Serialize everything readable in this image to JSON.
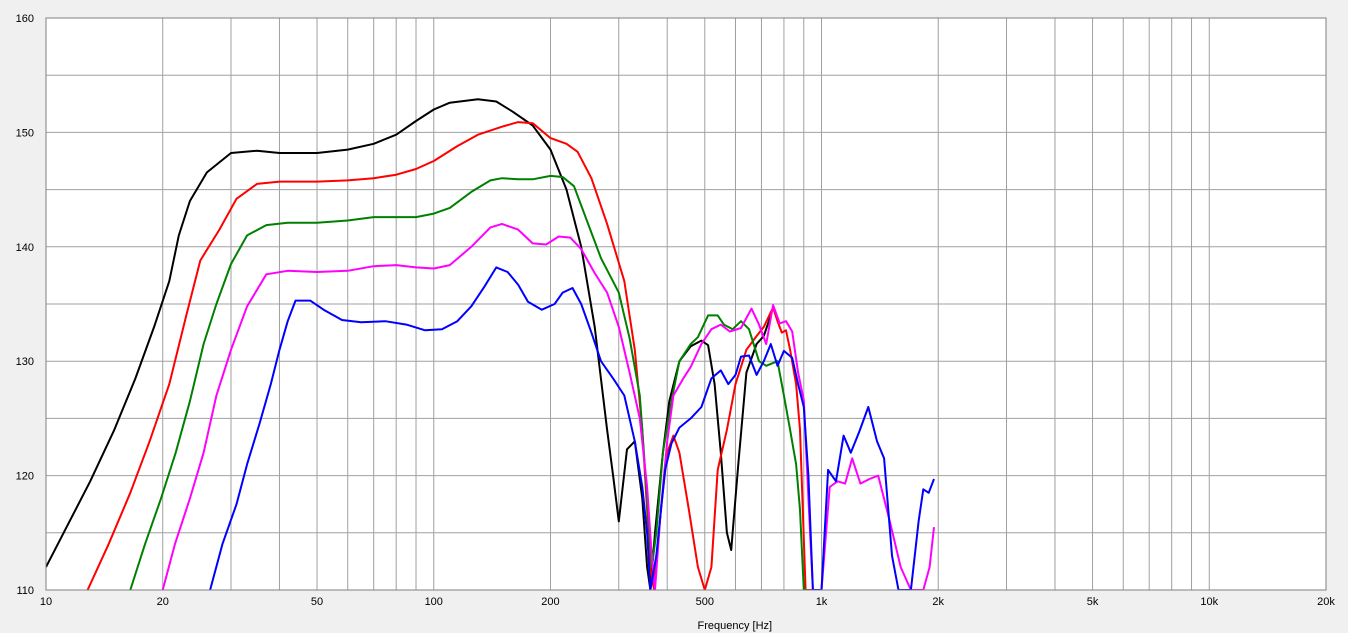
{
  "chart_data": {
    "type": "line",
    "title": "",
    "xlabel": "Frequency [Hz]",
    "ylabel": "",
    "xscale": "log",
    "xlim": [
      10,
      20000
    ],
    "ylim": [
      110,
      160
    ],
    "grid": true,
    "legend": "none",
    "x_tick_labels": [
      {
        "value": 10,
        "label": "10"
      },
      {
        "value": 20,
        "label": "20"
      },
      {
        "value": 50,
        "label": "50"
      },
      {
        "value": 100,
        "label": "100"
      },
      {
        "value": 200,
        "label": "200"
      },
      {
        "value": 500,
        "label": "500"
      },
      {
        "value": 1000,
        "label": "1k"
      },
      {
        "value": 2000,
        "label": "2k"
      },
      {
        "value": 5000,
        "label": "5k"
      },
      {
        "value": 10000,
        "label": "10k"
      },
      {
        "value": 20000,
        "label": "20k"
      }
    ],
    "y_tick_labels": [
      {
        "value": 110,
        "label": "110"
      },
      {
        "value": 120,
        "label": "120"
      },
      {
        "value": 130,
        "label": "130"
      },
      {
        "value": 140,
        "label": "140"
      },
      {
        "value": 150,
        "label": "150"
      },
      {
        "value": 160,
        "label": "160"
      }
    ],
    "series": [
      {
        "color": "#000000",
        "points": [
          [
            10,
            112
          ],
          [
            11.3,
            115.5
          ],
          [
            13,
            119.5
          ],
          [
            15,
            124
          ],
          [
            17,
            128.5
          ],
          [
            19,
            133
          ],
          [
            20.8,
            137
          ],
          [
            22,
            141
          ],
          [
            23.5,
            144
          ],
          [
            26,
            146.5
          ],
          [
            30,
            148.2
          ],
          [
            35,
            148.4
          ],
          [
            40,
            148.2
          ],
          [
            50,
            148.2
          ],
          [
            60,
            148.5
          ],
          [
            70,
            149
          ],
          [
            80,
            149.8
          ],
          [
            90,
            151
          ],
          [
            100,
            152
          ],
          [
            110,
            152.6
          ],
          [
            130,
            152.9
          ],
          [
            145,
            152.7
          ],
          [
            160,
            151.8
          ],
          [
            180,
            150.6
          ],
          [
            200,
            148.5
          ],
          [
            220,
            145
          ],
          [
            240,
            140
          ],
          [
            260,
            133
          ],
          [
            280,
            124
          ],
          [
            290,
            120
          ],
          [
            300,
            116
          ],
          [
            315,
            122.3
          ],
          [
            330,
            123
          ],
          [
            345,
            118
          ],
          [
            355,
            112
          ],
          [
            362,
            110
          ],
          [
            372,
            115
          ],
          [
            390,
            122
          ],
          [
            405,
            126.5
          ],
          [
            430,
            130
          ],
          [
            460,
            131.3
          ],
          [
            490,
            131.8
          ],
          [
            510,
            131.4
          ],
          [
            530,
            128
          ],
          [
            550,
            122
          ],
          [
            570,
            115
          ],
          [
            585,
            113.5
          ],
          [
            610,
            121
          ],
          [
            640,
            129
          ],
          [
            680,
            131.5
          ],
          [
            710,
            132.2
          ],
          [
            740,
            134
          ]
        ]
      },
      {
        "color": "#ff0000",
        "points": [
          [
            12.8,
            110
          ],
          [
            14.5,
            114
          ],
          [
            16.5,
            118.5
          ],
          [
            18.5,
            123
          ],
          [
            20.8,
            128
          ],
          [
            23,
            134
          ],
          [
            25,
            138.8
          ],
          [
            28,
            141.5
          ],
          [
            31,
            144.2
          ],
          [
            35,
            145.5
          ],
          [
            40,
            145.7
          ],
          [
            50,
            145.7
          ],
          [
            60,
            145.8
          ],
          [
            70,
            146
          ],
          [
            80,
            146.3
          ],
          [
            90,
            146.8
          ],
          [
            100,
            147.5
          ],
          [
            115,
            148.8
          ],
          [
            130,
            149.8
          ],
          [
            150,
            150.5
          ],
          [
            165,
            150.9
          ],
          [
            180,
            150.8
          ],
          [
            200,
            149.5
          ],
          [
            220,
            149
          ],
          [
            235,
            148.3
          ],
          [
            255,
            146
          ],
          [
            280,
            142
          ],
          [
            310,
            137
          ],
          [
            330,
            131
          ],
          [
            345,
            124
          ],
          [
            355,
            117
          ],
          [
            362,
            112
          ],
          [
            370,
            110
          ],
          [
            385,
            117
          ],
          [
            400,
            122
          ],
          [
            415,
            123.5
          ],
          [
            430,
            122
          ],
          [
            455,
            117
          ],
          [
            480,
            112
          ],
          [
            500,
            110
          ],
          [
            520,
            112
          ],
          [
            540,
            120.5
          ],
          [
            570,
            124
          ],
          [
            600,
            128
          ],
          [
            640,
            131
          ],
          [
            680,
            132.2
          ],
          [
            710,
            133
          ],
          [
            750,
            134.7
          ],
          [
            770,
            133.5
          ],
          [
            790,
            132.5
          ],
          [
            810,
            132.7
          ],
          [
            830,
            131
          ],
          [
            860,
            128
          ],
          [
            880,
            124
          ],
          [
            910,
            110
          ],
          [
            960,
            110
          ]
        ]
      },
      {
        "color": "#008000",
        "points": [
          [
            16.5,
            110
          ],
          [
            18,
            114
          ],
          [
            19.8,
            118
          ],
          [
            21.6,
            122
          ],
          [
            23.5,
            126.5
          ],
          [
            25.5,
            131.5
          ],
          [
            27.5,
            135
          ],
          [
            30,
            138.5
          ],
          [
            33,
            141
          ],
          [
            37,
            141.9
          ],
          [
            42,
            142.1
          ],
          [
            50,
            142.1
          ],
          [
            60,
            142.3
          ],
          [
            70,
            142.6
          ],
          [
            80,
            142.6
          ],
          [
            90,
            142.6
          ],
          [
            100,
            142.9
          ],
          [
            110,
            143.4
          ],
          [
            125,
            144.8
          ],
          [
            140,
            145.8
          ],
          [
            150,
            146
          ],
          [
            165,
            145.9
          ],
          [
            180,
            145.9
          ],
          [
            200,
            146.2
          ],
          [
            215,
            146.1
          ],
          [
            230,
            145.3
          ],
          [
            250,
            142
          ],
          [
            270,
            139
          ],
          [
            300,
            136
          ],
          [
            320,
            132
          ],
          [
            340,
            127
          ],
          [
            350,
            121
          ],
          [
            358,
            116
          ],
          [
            365,
            112
          ],
          [
            375,
            115
          ],
          [
            390,
            122
          ],
          [
            410,
            126.5
          ],
          [
            430,
            130
          ],
          [
            460,
            131.5
          ],
          [
            480,
            132.1
          ],
          [
            510,
            134
          ],
          [
            540,
            134
          ],
          [
            560,
            133.2
          ],
          [
            590,
            132.8
          ],
          [
            620,
            133.5
          ],
          [
            650,
            132.8
          ],
          [
            690,
            130
          ],
          [
            720,
            129.6
          ],
          [
            770,
            130
          ],
          [
            800,
            127
          ],
          [
            830,
            124
          ],
          [
            860,
            121
          ],
          [
            880,
            117
          ],
          [
            900,
            110
          ],
          [
            920,
            110
          ]
        ]
      },
      {
        "color": "#ff00ff",
        "points": [
          [
            20,
            110
          ],
          [
            21.5,
            114
          ],
          [
            23.5,
            118
          ],
          [
            25.5,
            122
          ],
          [
            27.5,
            127
          ],
          [
            30,
            131
          ],
          [
            33,
            134.8
          ],
          [
            37,
            137.6
          ],
          [
            42,
            137.9
          ],
          [
            50,
            137.8
          ],
          [
            60,
            137.9
          ],
          [
            70,
            138.3
          ],
          [
            80,
            138.4
          ],
          [
            90,
            138.2
          ],
          [
            100,
            138.1
          ],
          [
            110,
            138.4
          ],
          [
            125,
            140
          ],
          [
            140,
            141.7
          ],
          [
            150,
            142
          ],
          [
            165,
            141.5
          ],
          [
            180,
            140.3
          ],
          [
            195,
            140.2
          ],
          [
            210,
            140.9
          ],
          [
            225,
            140.8
          ],
          [
            240,
            139.8
          ],
          [
            260,
            137.7
          ],
          [
            280,
            136
          ],
          [
            300,
            133
          ],
          [
            320,
            129
          ],
          [
            340,
            125
          ],
          [
            355,
            119
          ],
          [
            365,
            113
          ],
          [
            372,
            110
          ],
          [
            385,
            117
          ],
          [
            400,
            123
          ],
          [
            415,
            127
          ],
          [
            440,
            128.5
          ],
          [
            460,
            129.5
          ],
          [
            490,
            131.5
          ],
          [
            520,
            132.8
          ],
          [
            550,
            133.2
          ],
          [
            580,
            132.6
          ],
          [
            620,
            132.9
          ],
          [
            660,
            134.6
          ],
          [
            690,
            133.2
          ],
          [
            720,
            131.5
          ],
          [
            750,
            134.9
          ],
          [
            780,
            133.3
          ],
          [
            810,
            133.5
          ],
          [
            840,
            132.6
          ],
          [
            870,
            129
          ],
          [
            900,
            126.6
          ],
          [
            925,
            118
          ],
          [
            950,
            110
          ],
          [
            1000,
            110
          ],
          [
            1050,
            119
          ],
          [
            1100,
            119.5
          ],
          [
            1150,
            119.3
          ],
          [
            1200,
            121.5
          ],
          [
            1260,
            119.3
          ],
          [
            1330,
            119.7
          ],
          [
            1400,
            120
          ],
          [
            1500,
            116
          ],
          [
            1600,
            112
          ],
          [
            1700,
            110
          ],
          [
            1830,
            110
          ],
          [
            1900,
            112
          ],
          [
            1950,
            115.5
          ]
        ]
      },
      {
        "color": "#0000ff",
        "points": [
          [
            26.5,
            110
          ],
          [
            28.5,
            114
          ],
          [
            31,
            117.5
          ],
          [
            33,
            121
          ],
          [
            35.5,
            124.5
          ],
          [
            38,
            128
          ],
          [
            40,
            131
          ],
          [
            42,
            133.5
          ],
          [
            44,
            135.3
          ],
          [
            48,
            135.3
          ],
          [
            52,
            134.5
          ],
          [
            58,
            133.6
          ],
          [
            65,
            133.4
          ],
          [
            75,
            133.5
          ],
          [
            85,
            133.2
          ],
          [
            95,
            132.7
          ],
          [
            105,
            132.8
          ],
          [
            115,
            133.5
          ],
          [
            125,
            134.8
          ],
          [
            135,
            136.5
          ],
          [
            145,
            138.2
          ],
          [
            155,
            137.8
          ],
          [
            165,
            136.7
          ],
          [
            175,
            135.2
          ],
          [
            190,
            134.5
          ],
          [
            205,
            135
          ],
          [
            215,
            136
          ],
          [
            228,
            136.4
          ],
          [
            240,
            135
          ],
          [
            255,
            132.5
          ],
          [
            270,
            130
          ],
          [
            290,
            128.5
          ],
          [
            310,
            127
          ],
          [
            330,
            123
          ],
          [
            345,
            119
          ],
          [
            355,
            115
          ],
          [
            362,
            110
          ],
          [
            375,
            113
          ],
          [
            395,
            120.5
          ],
          [
            410,
            122.8
          ],
          [
            430,
            124.2
          ],
          [
            460,
            125
          ],
          [
            490,
            126
          ],
          [
            520,
            128.5
          ],
          [
            550,
            129.2
          ],
          [
            575,
            128
          ],
          [
            600,
            128.8
          ],
          [
            620,
            130.4
          ],
          [
            650,
            130.5
          ],
          [
            680,
            128.8
          ],
          [
            710,
            130
          ],
          [
            740,
            131.5
          ],
          [
            770,
            129.6
          ],
          [
            800,
            130.9
          ],
          [
            840,
            130.3
          ],
          [
            870,
            128
          ],
          [
            900,
            126
          ],
          [
            925,
            120
          ],
          [
            950,
            110
          ],
          [
            1000,
            110
          ],
          [
            1040,
            120.5
          ],
          [
            1090,
            119.5
          ],
          [
            1140,
            123.5
          ],
          [
            1190,
            122
          ],
          [
            1250,
            123.8
          ],
          [
            1320,
            126
          ],
          [
            1390,
            123
          ],
          [
            1450,
            121.5
          ],
          [
            1520,
            113
          ],
          [
            1580,
            110
          ],
          [
            1700,
            110
          ],
          [
            1780,
            116
          ],
          [
            1830,
            118.8
          ],
          [
            1890,
            118.5
          ],
          [
            1950,
            119.7
          ]
        ]
      }
    ]
  }
}
